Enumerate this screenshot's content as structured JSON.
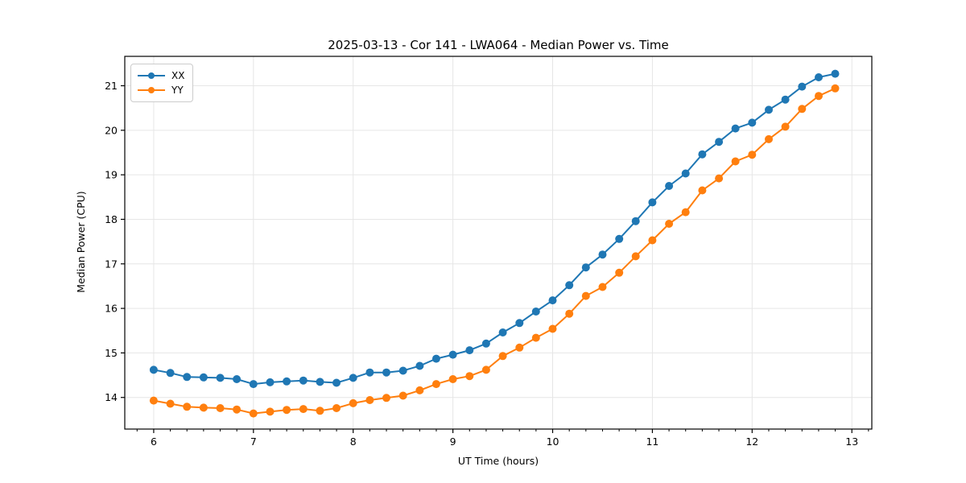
{
  "figure": {
    "background": "#ffffff",
    "spine_color": "#000000",
    "grid_color": "#e6e6e6",
    "tick_label_color": "#000000"
  },
  "chart_data": {
    "type": "line",
    "title": "2025-03-13 - Cor 141 - LWA064 - Median Power vs. Time",
    "xlabel": "UT Time (hours)",
    "ylabel": "Median Power (CPU)",
    "xlim": [
      5.71,
      13.2
    ],
    "ylim": [
      13.29,
      21.66
    ],
    "xticks": [
      6,
      7,
      8,
      9,
      10,
      11,
      12,
      13
    ],
    "yticks": [
      14,
      15,
      16,
      17,
      18,
      19,
      20,
      21
    ],
    "x_minor_step": 0.1666667,
    "grid": true,
    "legend_position": "upper-left",
    "marker": "circle",
    "x": [
      6.0,
      6.167,
      6.333,
      6.5,
      6.667,
      6.833,
      7.0,
      7.167,
      7.333,
      7.5,
      7.667,
      7.833,
      8.0,
      8.167,
      8.333,
      8.5,
      8.667,
      8.833,
      9.0,
      9.167,
      9.333,
      9.5,
      9.667,
      9.833,
      10.0,
      10.167,
      10.333,
      10.5,
      10.667,
      10.833,
      11.0,
      11.167,
      11.333,
      11.5,
      11.667,
      11.833,
      12.0,
      12.167,
      12.333,
      12.5,
      12.667,
      12.833
    ],
    "series": [
      {
        "name": "XX",
        "color": "#1f77b4",
        "values": [
          14.62,
          14.55,
          14.46,
          14.45,
          14.44,
          14.41,
          14.3,
          14.34,
          14.36,
          14.38,
          14.35,
          14.33,
          14.44,
          14.56,
          14.56,
          14.6,
          14.71,
          14.87,
          14.96,
          15.06,
          15.21,
          15.46,
          15.67,
          15.93,
          16.18,
          16.52,
          16.92,
          17.21,
          17.56,
          17.96,
          18.38,
          18.75,
          19.03,
          19.46,
          19.74,
          20.04,
          20.17,
          20.46,
          20.69,
          20.98,
          21.19,
          21.27
        ]
      },
      {
        "name": "YY",
        "color": "#ff7f0e",
        "values": [
          13.93,
          13.86,
          13.79,
          13.77,
          13.76,
          13.73,
          13.64,
          13.68,
          13.72,
          13.74,
          13.7,
          13.76,
          13.87,
          13.94,
          13.99,
          14.04,
          14.16,
          14.3,
          14.41,
          14.48,
          14.62,
          14.93,
          15.12,
          15.34,
          15.54,
          15.88,
          16.28,
          16.48,
          16.8,
          17.17,
          17.53,
          17.9,
          18.16,
          18.65,
          18.92,
          19.3,
          19.45,
          19.8,
          20.08,
          20.48,
          20.77,
          20.94
        ]
      }
    ]
  }
}
